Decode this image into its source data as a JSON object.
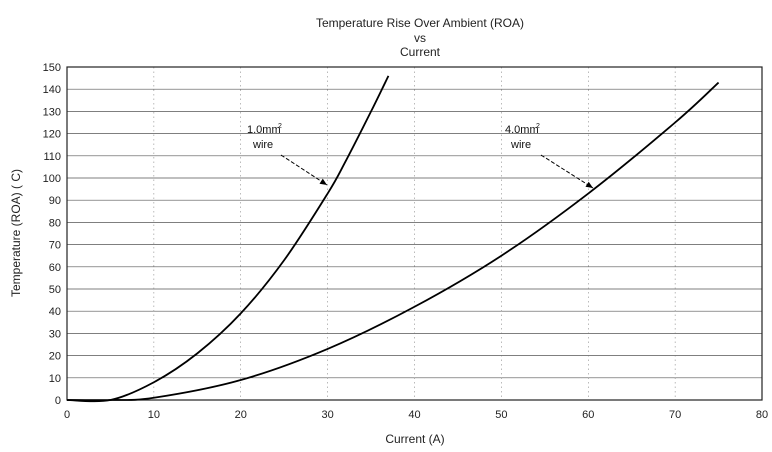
{
  "chart_data": {
    "type": "line",
    "title": [
      "Temperature  Rise Over Ambient (ROA)",
      "vs",
      "Current"
    ],
    "xlabel": "Current (A)",
    "ylabel": "Temperature (ROA) ( C)",
    "xlim": [
      0,
      80
    ],
    "ylim": [
      0,
      150
    ],
    "x_ticks": [
      0,
      10,
      20,
      30,
      40,
      50,
      60,
      70,
      80
    ],
    "y_ticks": [
      0,
      10,
      20,
      30,
      40,
      50,
      60,
      70,
      80,
      90,
      100,
      110,
      120,
      130,
      140,
      150
    ],
    "grid": true,
    "series": [
      {
        "name": "1.0mm² wire",
        "x": [
          0,
          5,
          10,
          15,
          20,
          25,
          30,
          32,
          35,
          37
        ],
        "values": [
          0,
          0,
          8,
          21,
          39,
          63,
          93,
          107,
          130,
          146
        ]
      },
      {
        "name": "4.0mm² wire",
        "x": [
          0,
          5,
          10,
          20,
          30,
          40,
          50,
          60,
          70,
          75
        ],
        "values": [
          0,
          0,
          1,
          9,
          23,
          42,
          65,
          93,
          125,
          143
        ]
      }
    ],
    "annotations": [
      {
        "label_main": "1.0mm",
        "label_sup": "2",
        "label_sub": "wire",
        "x": 31,
        "y": 97
      },
      {
        "label_main": "4.0mm",
        "label_sup": "2",
        "label_sub": "wire",
        "x": 61,
        "y": 95
      }
    ]
  }
}
